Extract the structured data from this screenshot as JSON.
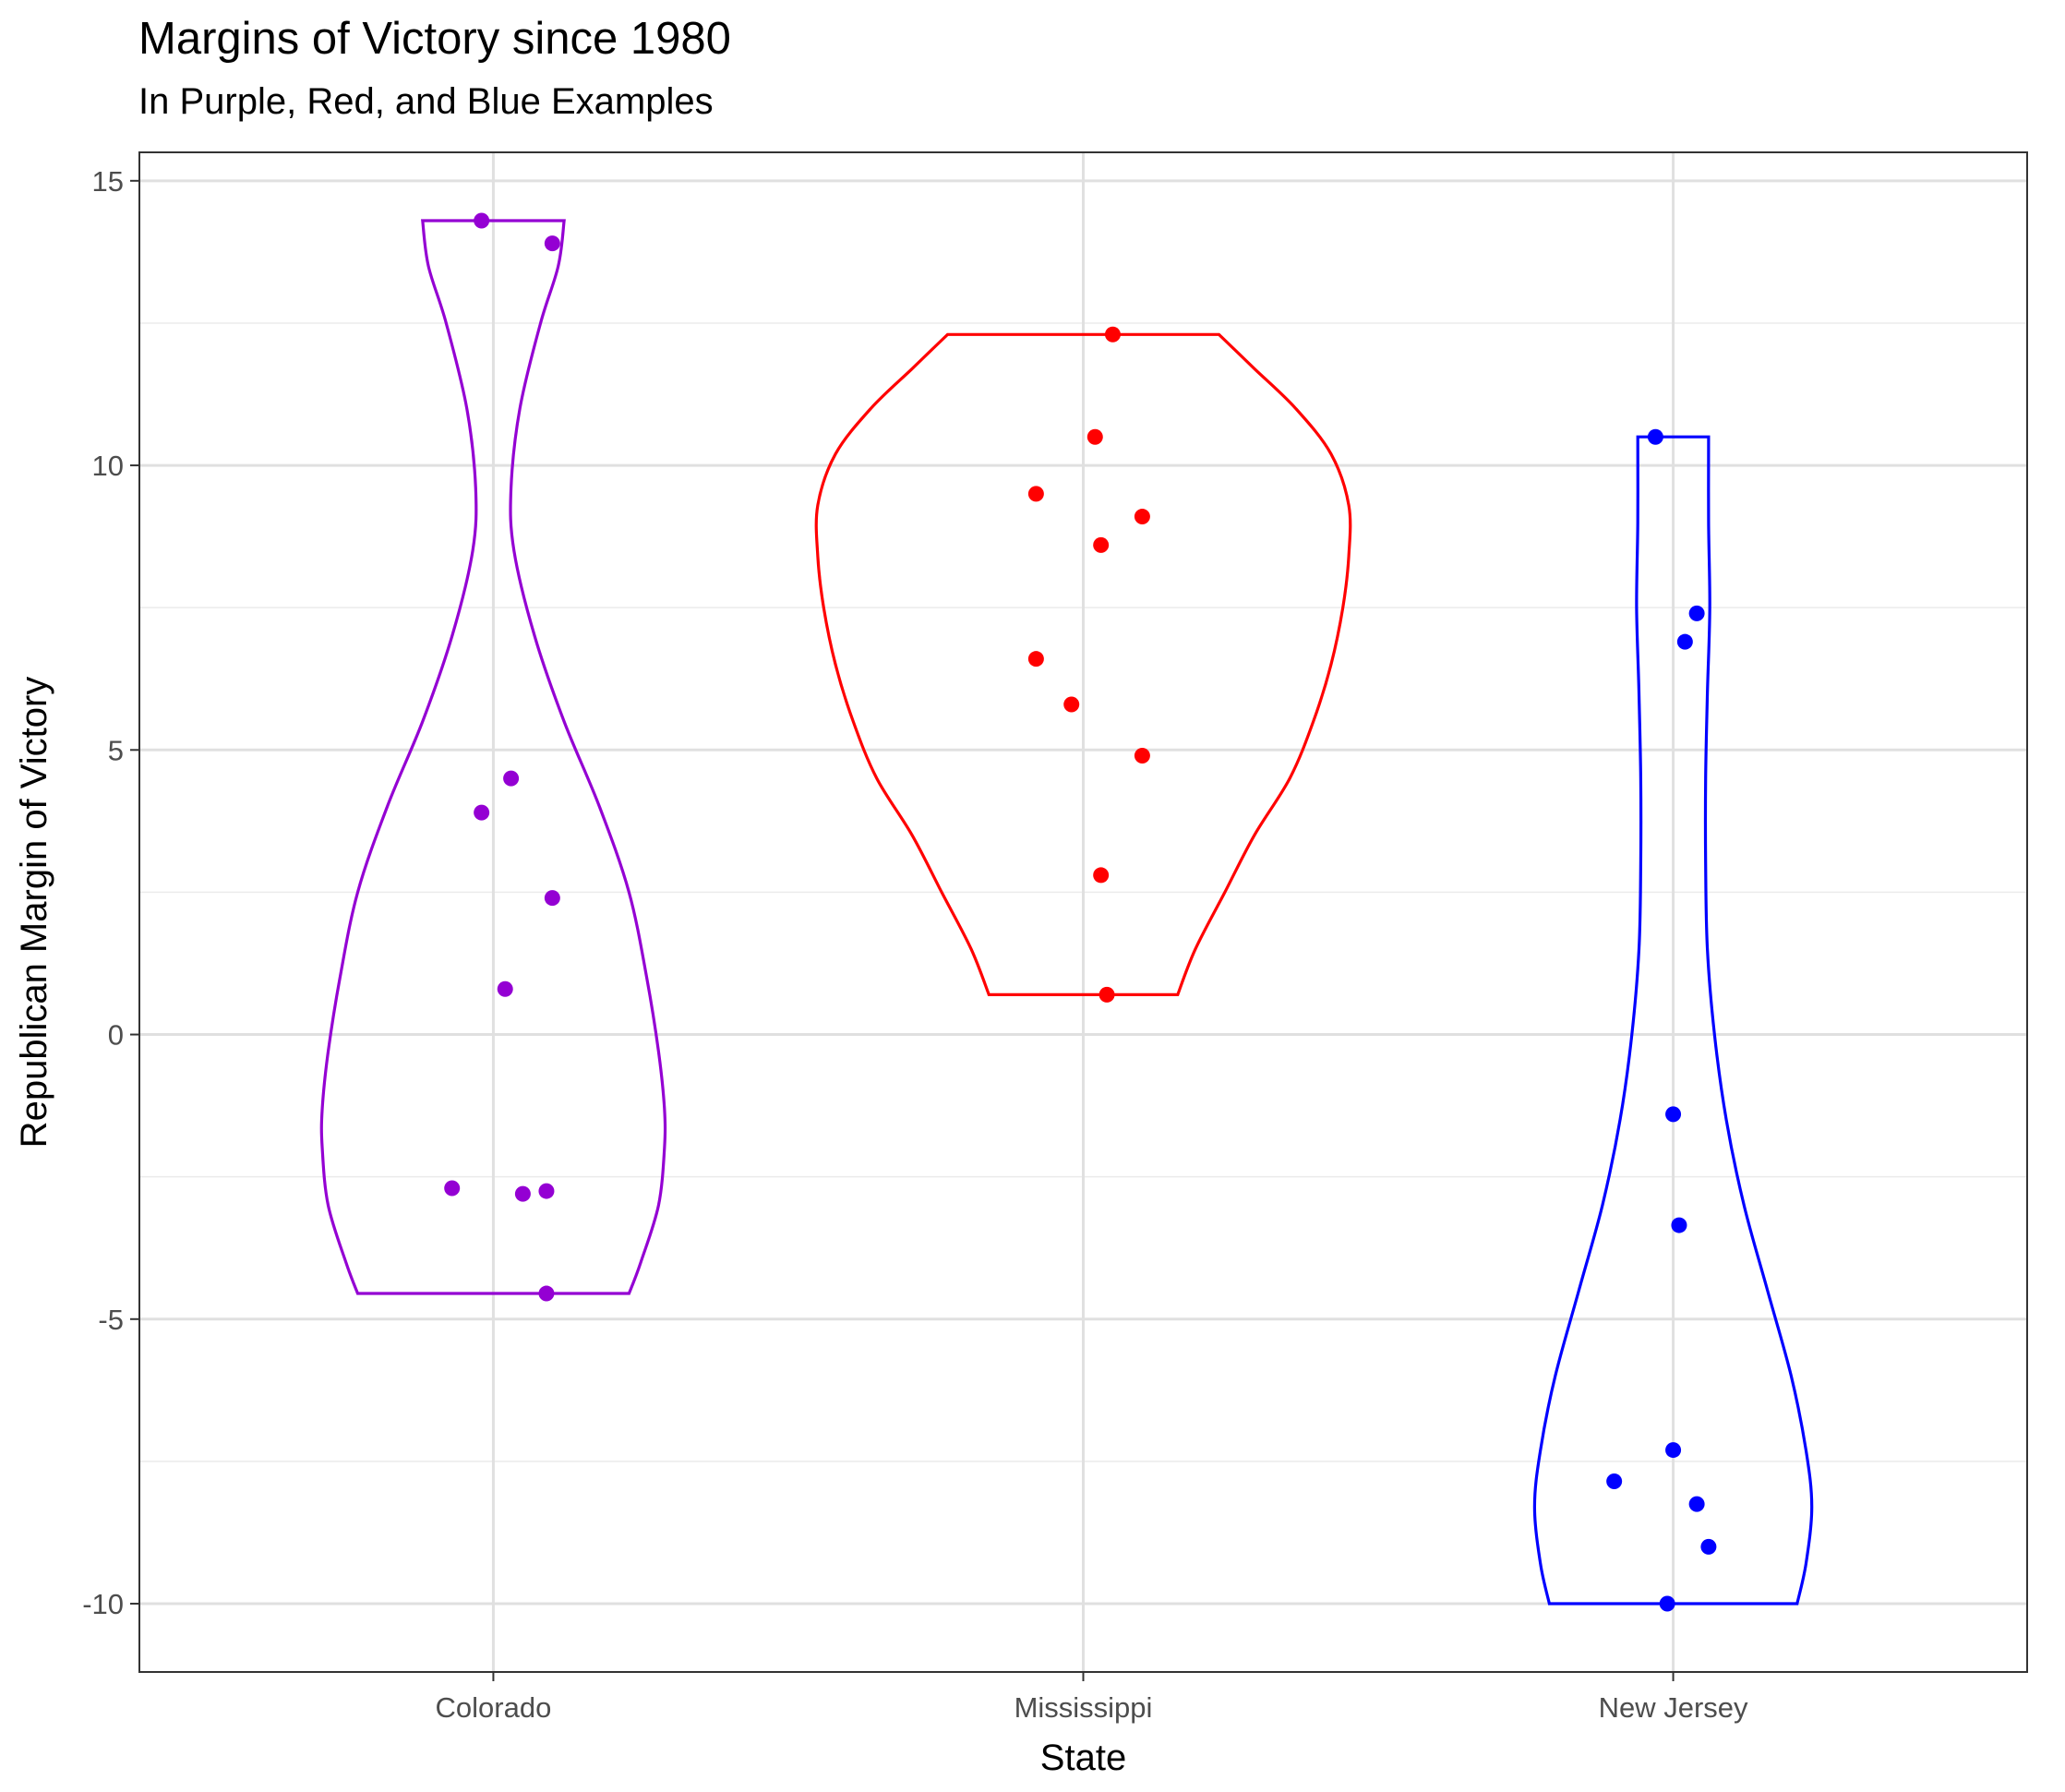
{
  "chart_data": {
    "type": "violin",
    "title": "Margins of Victory since 1980",
    "subtitle": "In Purple, Red, and Blue Examples",
    "xlabel": "State",
    "ylabel": "Republican Margin of Victory",
    "categories": [
      "Colorado",
      "Mississippi",
      "New Jersey"
    ],
    "ylim": [
      -11.2,
      15.5
    ],
    "yticks": [
      -10,
      -5,
      0,
      5,
      10,
      15
    ],
    "ytick_labels": [
      "-10",
      "-5",
      "0",
      "5",
      "10",
      "15"
    ],
    "grid": true,
    "legend": "none",
    "series": [
      {
        "category": "Colorado",
        "color": "#9400D3",
        "points": [
          {
            "jitter": -0.02,
            "y": 14.3
          },
          {
            "jitter": 0.1,
            "y": 13.9
          },
          {
            "jitter": 0.03,
            "y": 4.5
          },
          {
            "jitter": -0.02,
            "y": 3.9
          },
          {
            "jitter": 0.1,
            "y": 2.4
          },
          {
            "jitter": 0.02,
            "y": 0.8
          },
          {
            "jitter": -0.07,
            "y": -2.7
          },
          {
            "jitter": 0.05,
            "y": -2.8
          },
          {
            "jitter": 0.09,
            "y": -2.75
          },
          {
            "jitter": 0.09,
            "y": -4.55
          }
        ]
      },
      {
        "category": "Mississippi",
        "color": "#FF0000",
        "points": [
          {
            "jitter": 0.05,
            "y": 12.3
          },
          {
            "jitter": 0.02,
            "y": 10.5
          },
          {
            "jitter": -0.08,
            "y": 9.5
          },
          {
            "jitter": 0.1,
            "y": 9.1
          },
          {
            "jitter": 0.03,
            "y": 8.6
          },
          {
            "jitter": -0.08,
            "y": 6.6
          },
          {
            "jitter": -0.02,
            "y": 5.8
          },
          {
            "jitter": 0.1,
            "y": 4.9
          },
          {
            "jitter": 0.03,
            "y": 2.8
          },
          {
            "jitter": 0.04,
            "y": 0.7
          }
        ]
      },
      {
        "category": "New Jersey",
        "color": "#0000FF",
        "points": [
          {
            "jitter": -0.03,
            "y": 10.5
          },
          {
            "jitter": 0.04,
            "y": 7.4
          },
          {
            "jitter": 0.02,
            "y": 6.9
          },
          {
            "jitter": 0.0,
            "y": -1.4
          },
          {
            "jitter": 0.01,
            "y": -3.35
          },
          {
            "jitter": 0.0,
            "y": -7.3
          },
          {
            "jitter": -0.1,
            "y": -7.85
          },
          {
            "jitter": 0.04,
            "y": -8.25
          },
          {
            "jitter": 0.06,
            "y": -9.0
          },
          {
            "jitter": -0.01,
            "y": -10.0
          }
        ]
      }
    ],
    "violins": [
      {
        "category": "Colorado",
        "color": "#9400D3",
        "profile": [
          {
            "y": -4.55,
            "hw": 0.23
          },
          {
            "y": -4.0,
            "hw": 0.25
          },
          {
            "y": -3.0,
            "hw": 0.28
          },
          {
            "y": -2.0,
            "hw": 0.29
          },
          {
            "y": -1.3,
            "hw": 0.29
          },
          {
            "y": -0.3,
            "hw": 0.28
          },
          {
            "y": 1.0,
            "hw": 0.26
          },
          {
            "y": 2.5,
            "hw": 0.23
          },
          {
            "y": 4.0,
            "hw": 0.18
          },
          {
            "y": 5.5,
            "hw": 0.12
          },
          {
            "y": 7.0,
            "hw": 0.07
          },
          {
            "y": 8.5,
            "hw": 0.035
          },
          {
            "y": 9.6,
            "hw": 0.03
          },
          {
            "y": 11.0,
            "hw": 0.045
          },
          {
            "y": 12.5,
            "hw": 0.08
          },
          {
            "y": 13.5,
            "hw": 0.11
          },
          {
            "y": 14.3,
            "hw": 0.12
          }
        ]
      },
      {
        "category": "Mississippi",
        "color": "#FF0000",
        "profile": [
          {
            "y": 0.7,
            "hw": 0.16
          },
          {
            "y": 1.5,
            "hw": 0.19
          },
          {
            "y": 2.5,
            "hw": 0.24
          },
          {
            "y": 3.5,
            "hw": 0.29
          },
          {
            "y": 4.5,
            "hw": 0.35
          },
          {
            "y": 5.5,
            "hw": 0.39
          },
          {
            "y": 6.5,
            "hw": 0.42
          },
          {
            "y": 7.5,
            "hw": 0.44
          },
          {
            "y": 8.4,
            "hw": 0.45
          },
          {
            "y": 9.3,
            "hw": 0.45
          },
          {
            "y": 10.2,
            "hw": 0.42
          },
          {
            "y": 11.0,
            "hw": 0.36
          },
          {
            "y": 11.7,
            "hw": 0.29
          },
          {
            "y": 12.3,
            "hw": 0.23
          }
        ]
      },
      {
        "category": "New Jersey",
        "color": "#0000FF",
        "profile": [
          {
            "y": -10.0,
            "hw": 0.21
          },
          {
            "y": -9.3,
            "hw": 0.225
          },
          {
            "y": -8.3,
            "hw": 0.235
          },
          {
            "y": -7.3,
            "hw": 0.225
          },
          {
            "y": -6.0,
            "hw": 0.2
          },
          {
            "y": -4.5,
            "hw": 0.16
          },
          {
            "y": -3.0,
            "hw": 0.12
          },
          {
            "y": -1.5,
            "hw": 0.09
          },
          {
            "y": 0.0,
            "hw": 0.07
          },
          {
            "y": 1.5,
            "hw": 0.058
          },
          {
            "y": 3.0,
            "hw": 0.055
          },
          {
            "y": 4.5,
            "hw": 0.055
          },
          {
            "y": 6.0,
            "hw": 0.058
          },
          {
            "y": 7.5,
            "hw": 0.062
          },
          {
            "y": 9.0,
            "hw": 0.06
          },
          {
            "y": 10.5,
            "hw": 0.06
          }
        ]
      }
    ]
  }
}
